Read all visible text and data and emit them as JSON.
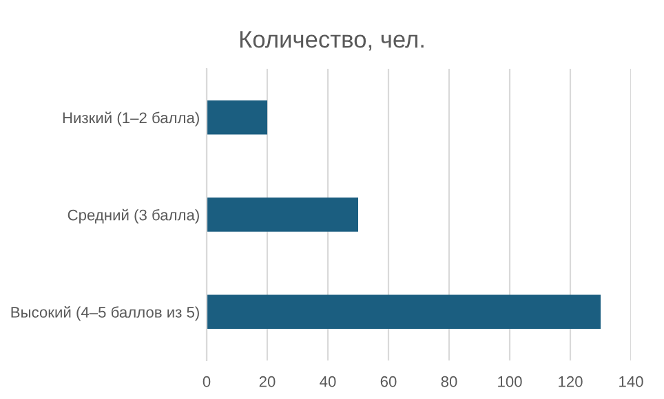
{
  "chart_data": {
    "type": "bar",
    "orientation": "horizontal",
    "title": "Количество, чел.",
    "categories": [
      "Низкий (1–2 балла)",
      "Средний (3 балла)",
      "Высокий (4–5 баллов из 5)"
    ],
    "values": [
      20,
      50,
      130
    ],
    "color": "#1b5e80",
    "xlim": [
      0,
      140
    ],
    "xticks": [
      0,
      20,
      40,
      60,
      80,
      100,
      120,
      140
    ],
    "grid": "x"
  }
}
